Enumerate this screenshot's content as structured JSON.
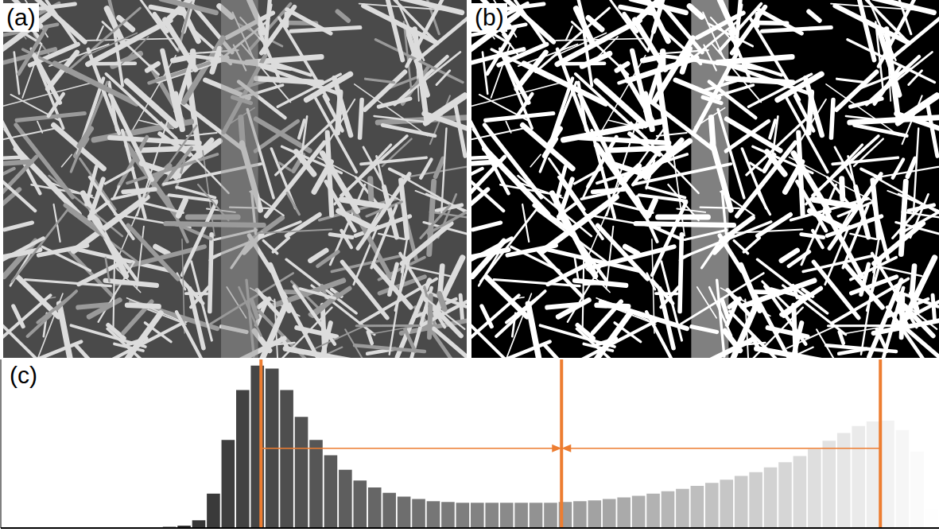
{
  "panels": [
    {
      "label": "(a)",
      "type": "image"
    },
    {
      "label": "(b)",
      "type": "image"
    },
    {
      "label": "(c)",
      "type": "histogram"
    }
  ],
  "chart_data": {
    "type": "histogram",
    "bins": [
      0,
      4,
      8,
      12,
      16,
      20,
      24,
      28,
      32,
      36,
      40,
      44,
      48,
      52,
      56,
      60,
      64,
      68,
      72,
      76,
      80,
      84,
      88,
      92,
      96,
      100,
      104,
      108,
      112,
      116,
      120,
      124,
      128,
      132,
      136,
      140,
      144,
      148,
      152,
      156,
      160,
      164,
      168,
      172,
      176,
      180,
      184,
      188,
      192,
      196,
      200,
      204,
      208,
      212,
      216,
      220,
      224,
      228,
      232,
      236,
      240,
      244,
      248,
      252,
      256
    ],
    "counts": [
      0.5,
      1,
      0.5,
      0.3,
      0.3,
      0.3,
      0.3,
      0.3,
      0.3,
      0.5,
      0.8,
      1.5,
      3,
      10,
      45,
      115,
      180,
      212,
      208,
      180,
      145,
      115,
      95,
      76,
      62,
      53,
      46,
      41,
      38,
      35,
      34,
      33,
      33,
      33,
      33,
      33,
      33,
      33,
      34,
      35,
      36,
      38,
      40,
      42,
      45,
      48,
      51,
      55,
      59,
      63,
      68,
      73,
      79,
      86,
      94,
      103,
      114,
      124,
      133,
      139,
      140,
      128,
      100,
      25
    ],
    "xlim": [
      0,
      256
    ],
    "ylim": [
      0,
      220
    ],
    "xticks": [],
    "yticks": [],
    "tick_labels": false,
    "grid": false,
    "annotations": {
      "color": "#ed7d31",
      "vlines": [
        71,
        153,
        240
      ],
      "arrows": [
        {
          "from": 71,
          "to": 153,
          "y": 104
        },
        {
          "from": 240,
          "to": 153,
          "y": 104
        }
      ]
    }
  }
}
